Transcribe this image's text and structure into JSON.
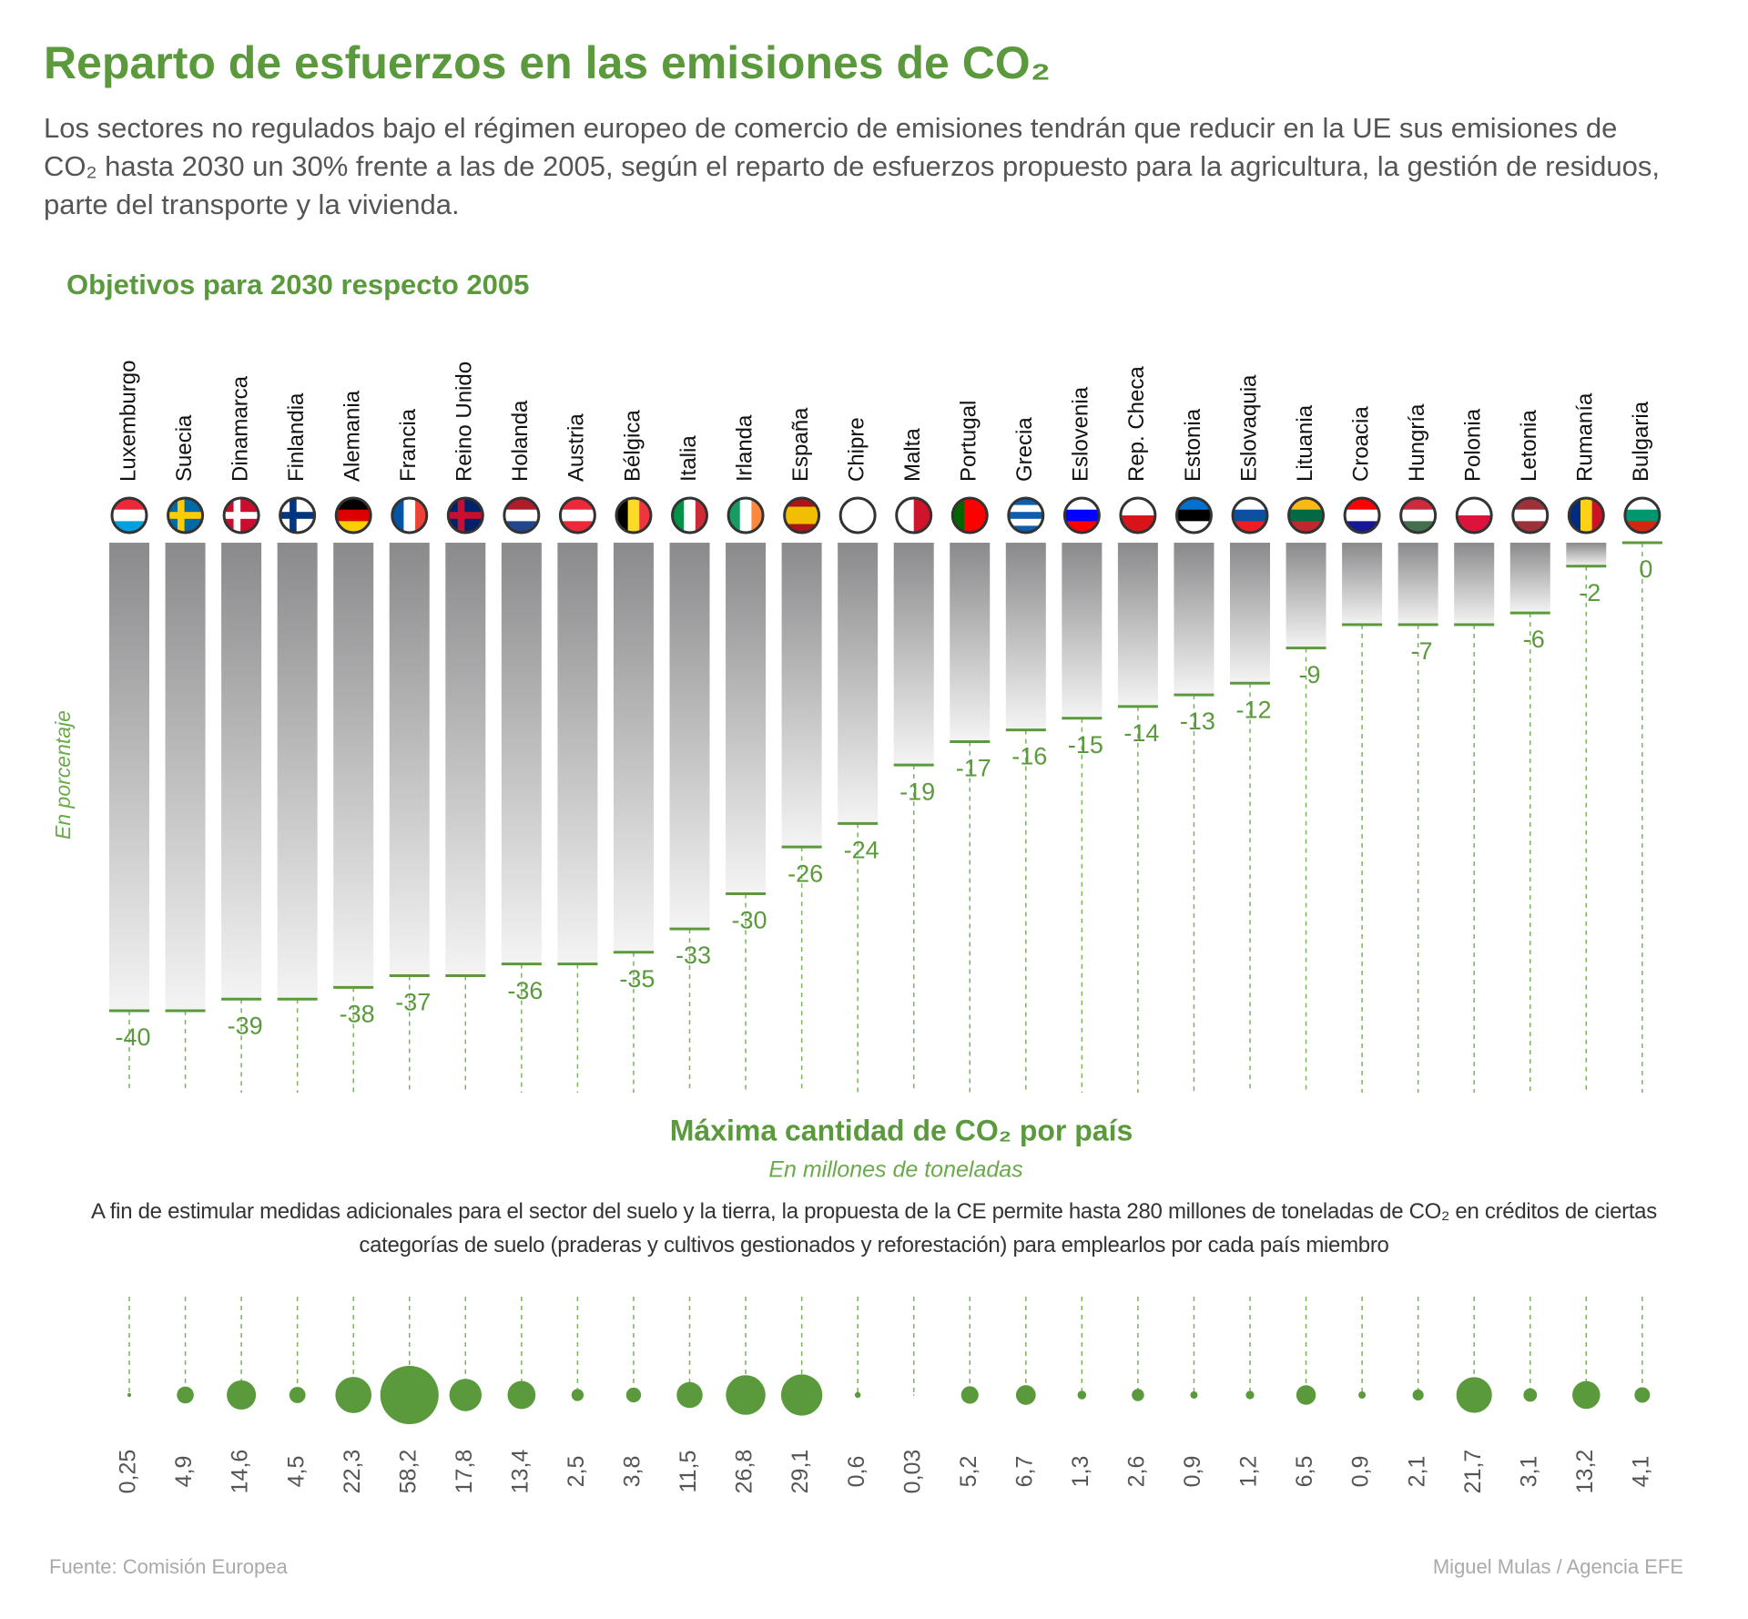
{
  "header": {
    "title": "Reparto de esfuerzos en las emisiones de CO₂",
    "subtitle": "Los sectores no regulados bajo el régimen europeo de comercio de emisiones tendrán que reducir en la UE sus emisiones de CO₂ hasta 2030 un 30% frente a las de 2005, según el reparto de esfuerzos propuesto para la agricultura, la gestión de residuos, parte del transporte y la vivienda."
  },
  "chart_data": [
    {
      "type": "bar",
      "title": "Objetivos para 2030 respecto 2005",
      "y_label": "En porcentaje",
      "categories": [
        "Luxemburgo",
        "Suecia",
        "Dinamarca",
        "Finlandia",
        "Alemania",
        "Francia",
        "Reino Unido",
        "Holanda",
        "Austria",
        "Bélgica",
        "Italia",
        "Irlanda",
        "España",
        "Chipre",
        "Malta",
        "Portugal",
        "Grecia",
        "Eslovenia",
        "Rep. Checa",
        "Estonia",
        "Eslovaquia",
        "Lituania",
        "Croacia",
        "Hungría",
        "Polonia",
        "Letonia",
        "Rumanía",
        "Bulgaria"
      ],
      "values": [
        -40,
        -40,
        -39,
        -39,
        -38,
        -37,
        -37,
        -36,
        -36,
        -35,
        -33,
        -30,
        -26,
        -24,
        -19,
        -17,
        -16,
        -15,
        -14,
        -13,
        -12,
        -9,
        -7,
        -7,
        -7,
        -6,
        -2,
        0
      ],
      "value_labels": [
        "-40",
        null,
        "-39",
        null,
        "-38",
        "-37",
        null,
        "-36",
        null,
        "-35",
        "-33",
        "-30",
        "-26",
        "-24",
        "-19",
        "-17",
        "-16",
        "-15",
        "-14",
        "-13",
        "-12",
        "-9",
        null,
        "-7",
        null,
        "-6",
        "-2",
        "0"
      ],
      "ylim": [
        -47,
        0
      ],
      "color": "#5a9a3c"
    },
    {
      "type": "bubble",
      "title": "Máxima cantidad de CO₂ por país",
      "subtitle": "En millones de toneladas",
      "note": "A fin de estimular medidas adicionales para el sector del suelo y la tierra, la propuesta de la CE permite hasta 280 millones de toneladas de CO₂ en créditos de ciertas categorías de suelo (praderas y cultivos gestionados y reforestación) para emplearlos por cada país miembro",
      "values": [
        0.25,
        4.9,
        14.6,
        4.5,
        22.3,
        58.2,
        17.8,
        13.4,
        2.5,
        3.8,
        11.5,
        26.8,
        29.1,
        0.6,
        0.03,
        5.2,
        6.7,
        1.3,
        2.6,
        0.9,
        1.2,
        6.5,
        0.9,
        2.1,
        21.7,
        3.1,
        13.2,
        4.1
      ],
      "value_labels": [
        "0,25",
        "4,9",
        "14,6",
        "4,5",
        "22,3",
        "58,2",
        "17,8",
        "13,4",
        "2,5",
        "3,8",
        "11,5",
        "26,8",
        "29,1",
        "0,6",
        "0,03",
        "5,2",
        "6,7",
        "1,3",
        "2,6",
        "0,9",
        "1,2",
        "6,5",
        "0,9",
        "2,1",
        "21,7",
        "3,1",
        "13,2",
        "4,1"
      ],
      "color": "#5a9a3c"
    }
  ],
  "footer": {
    "source": "Fuente: Comisión Europea",
    "credit": "Miguel Mulas / Agencia EFE"
  }
}
